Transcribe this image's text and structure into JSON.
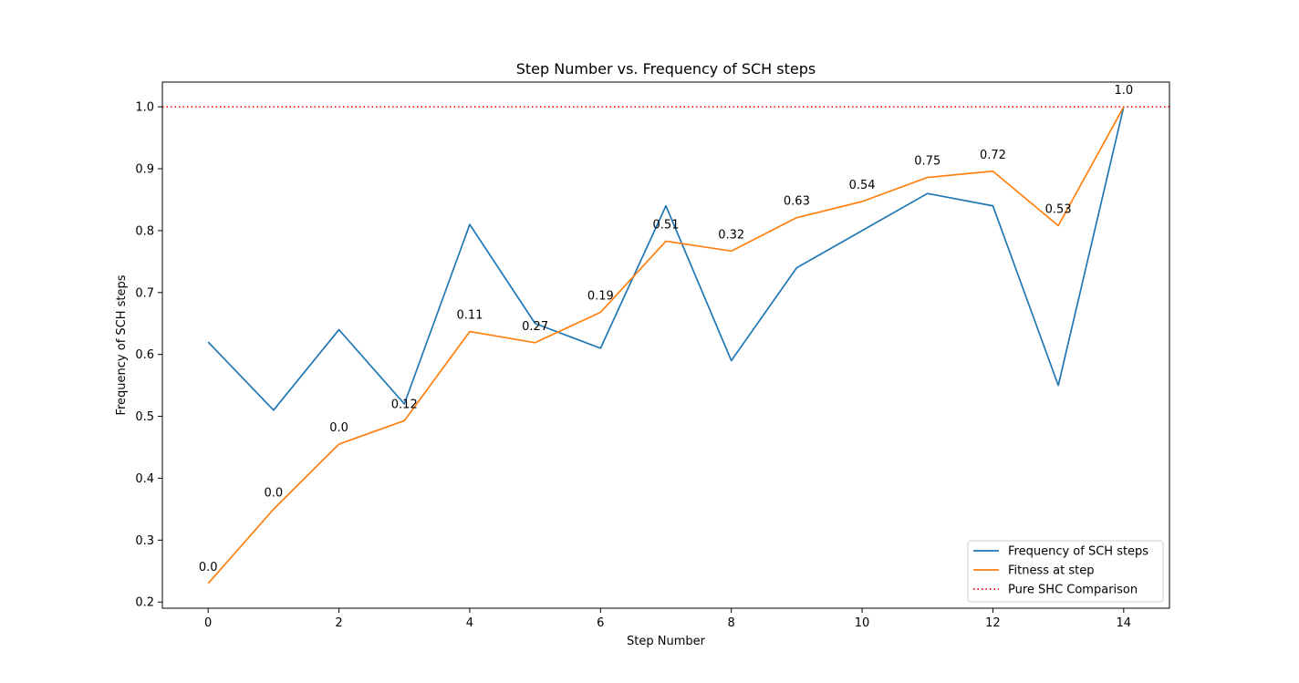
{
  "chart_data": {
    "type": "line",
    "title": "Step Number vs. Frequency of SCH steps",
    "xlabel": "Step Number",
    "ylabel": "Frequency of SCH steps",
    "xlim": [
      -0.7,
      14.7
    ],
    "ylim": [
      0.19,
      1.04
    ],
    "xticks": [
      0,
      2,
      4,
      6,
      8,
      10,
      12,
      14
    ],
    "yticks": [
      0.2,
      0.3,
      0.4,
      0.5,
      0.6,
      0.7,
      0.8,
      0.9,
      1.0
    ],
    "xtick_labels": [
      "0",
      "2",
      "4",
      "6",
      "8",
      "10",
      "12",
      "14"
    ],
    "ytick_labels": [
      "0.2",
      "0.3",
      "0.4",
      "0.5",
      "0.6",
      "0.7",
      "0.8",
      "0.9",
      "1.0"
    ],
    "grid": false,
    "legend_position": "bottom-right",
    "x": [
      0,
      1,
      2,
      3,
      4,
      5,
      6,
      7,
      8,
      9,
      10,
      11,
      12,
      13,
      14
    ],
    "series": [
      {
        "name": "Frequency of SCH steps",
        "color": "#1f77b4",
        "style": "solid",
        "values": [
          0.62,
          0.51,
          0.64,
          0.52,
          0.81,
          0.65,
          0.61,
          0.84,
          0.59,
          0.74,
          0.8,
          0.86,
          0.84,
          0.55,
          1.0
        ]
      },
      {
        "name": "Fitness at step",
        "color": "#ff7f0e",
        "style": "solid",
        "values": [
          0.23,
          0.35,
          0.455,
          0.493,
          0.637,
          0.619,
          0.668,
          0.783,
          0.767,
          0.821,
          0.847,
          0.886,
          0.896,
          0.808,
          1.0
        ],
        "annotations": [
          "0.0",
          "0.0",
          "0.0",
          "0.12",
          "0.11",
          "0.27",
          "0.19",
          "0.51",
          "0.32",
          "0.63",
          "0.54",
          "0.75",
          "0.72",
          "0.53",
          "1.0"
        ]
      }
    ],
    "reference_line": {
      "name": "Pure SHC Comparison",
      "color": "#ff0000",
      "style": "dotted",
      "y": 1.0
    }
  }
}
